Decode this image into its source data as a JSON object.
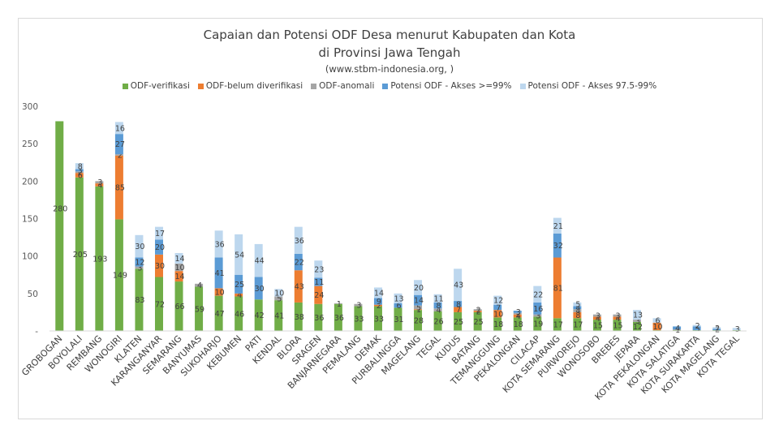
{
  "chart_data": {
    "type": "bar",
    "stacked": true,
    "title": "Capaian dan Potensi ODF Desa menurut Kabupaten dan Kota",
    "subtitle": "di Provinsi Jawa Tengah",
    "source": "(www.stbm-indonesia.org, )",
    "ylim": [
      0,
      300
    ],
    "yticks": [
      0,
      50,
      100,
      150,
      200,
      250,
      300
    ],
    "ytick_labels": [
      "-",
      "50",
      "100",
      "150",
      "200",
      "250",
      "300"
    ],
    "categories": [
      "GROBOGAN",
      "BOYOLALI",
      "REMBANG",
      "WONOGIRI",
      "KLATEN",
      "KARANGANYAR",
      "SEMARANG",
      "BANYUMAS",
      "SUKOHARJO",
      "KEBUMEN",
      "PATI",
      "KENDAL",
      "BLORA",
      "SRAGEN",
      "BANJARNEGARA",
      "PEMALANG",
      "DEMAK",
      "PURBALINGGA",
      "MAGELANG",
      "TEGAL",
      "KUDUS",
      "BATANG",
      "TEMANGGUNG",
      "PEKALONGAN",
      "CILACAP",
      "KOTA SEMARANG",
      "PURWOREJO",
      "WONOSOBO",
      "BREBES",
      "JEPARA",
      "KOTA PEKALONGAN",
      "KOTA SALATIGA",
      "KOTA SURAKARTA",
      "KOTA MAGELANG",
      "KOTA TEGAL"
    ],
    "series": [
      {
        "name": "ODF-verifikasi",
        "color": "#70ad47",
        "values": [
          280,
          205,
          193,
          149,
          83,
          72,
          66,
          59,
          47,
          46,
          42,
          41,
          38,
          36,
          36,
          33,
          33,
          31,
          28,
          26,
          25,
          25,
          18,
          18,
          19,
          17,
          17,
          15,
          15,
          12,
          1,
          1,
          1,
          1,
          1
        ]
      },
      {
        "name": "ODF-belum diverifikasi",
        "color": "#ed7d31",
        "values": [
          0,
          6,
          4,
          85,
          0,
          30,
          14,
          0,
          10,
          4,
          0,
          0,
          43,
          24,
          0,
          0,
          2,
          0,
          1,
          0,
          7,
          2,
          10,
          4,
          0,
          81,
          8,
          4,
          4,
          0,
          10,
          0,
          0,
          0,
          0
        ]
      },
      {
        "name": "ODF-anomali",
        "color": "#a5a5a5",
        "values": [
          0,
          2,
          3,
          2,
          3,
          0,
          10,
          4,
          0,
          0,
          0,
          5,
          0,
          0,
          1,
          3,
          0,
          0,
          5,
          4,
          0,
          2,
          0,
          2,
          3,
          0,
          4,
          3,
          3,
          3,
          0,
          1,
          0,
          0,
          0
        ]
      },
      {
        "name": "Potensi ODF - Akses >=99%",
        "color": "#5b9bd5",
        "values": [
          0,
          3,
          0,
          27,
          12,
          20,
          0,
          0,
          41,
          25,
          30,
          0,
          22,
          11,
          0,
          0,
          9,
          6,
          14,
          8,
          8,
          0,
          7,
          3,
          16,
          32,
          4,
          0,
          0,
          0,
          0,
          4,
          5,
          2,
          0
        ]
      },
      {
        "name": "Potensi ODF - Akses 97.5-99%",
        "color": "#bdd7ee",
        "values": [
          0,
          8,
          0,
          16,
          30,
          17,
          14,
          0,
          36,
          54,
          44,
          10,
          36,
          23,
          0,
          0,
          14,
          13,
          20,
          11,
          43,
          0,
          12,
          0,
          22,
          21,
          5,
          0,
          0,
          13,
          6,
          0,
          2,
          2,
          3
        ]
      }
    ],
    "labels": [
      [
        "280",
        "205",
        "193",
        "149",
        "83",
        "72",
        "66",
        "59",
        "47",
        "46",
        "42",
        "41",
        "38",
        "36",
        "36",
        "33",
        "33",
        "31",
        "28",
        "26",
        "25",
        "25",
        "18",
        "18",
        "19",
        "17",
        "17",
        "15",
        "15",
        "12",
        "",
        "",
        "",
        "",
        ""
      ],
      [
        "",
        "6",
        "4",
        "85",
        "",
        "30",
        "14",
        "",
        "10",
        "4",
        "",
        "",
        "43",
        "24",
        "",
        "",
        "2",
        "",
        "1",
        "",
        "7",
        "2",
        "10",
        "4",
        "",
        "81",
        "8",
        "4",
        "4",
        "",
        "10",
        "",
        "",
        "",
        ""
      ],
      [
        "",
        "2",
        "3",
        "2",
        "3",
        "",
        "10",
        "4",
        "",
        "",
        "",
        "5",
        "",
        "",
        "1",
        "3",
        "",
        "",
        "5",
        "4",
        "",
        "2",
        "",
        "2",
        "3",
        "",
        "4",
        "3",
        "3",
        "3",
        "",
        "1",
        "",
        "",
        ""
      ],
      [
        "",
        "3",
        "",
        "27",
        "12",
        "20",
        "",
        "",
        "41",
        "25",
        "30",
        "",
        "22",
        "11",
        "",
        "",
        "9",
        "6",
        "14",
        "8",
        "8",
        "",
        "7",
        "3",
        "16",
        "32",
        "4",
        "",
        "",
        "",
        "",
        "4",
        "5",
        "2",
        ""
      ],
      [
        "",
        "8",
        "",
        "16",
        "30",
        "17",
        "14",
        "",
        "36",
        "54",
        "44",
        "10",
        "36",
        "23",
        "",
        "",
        "14",
        "13",
        "20",
        "11",
        "43",
        "",
        "12",
        "",
        "22",
        "21",
        "5",
        "",
        "",
        "13",
        "6",
        "",
        "2",
        "2",
        "3"
      ]
    ]
  }
}
